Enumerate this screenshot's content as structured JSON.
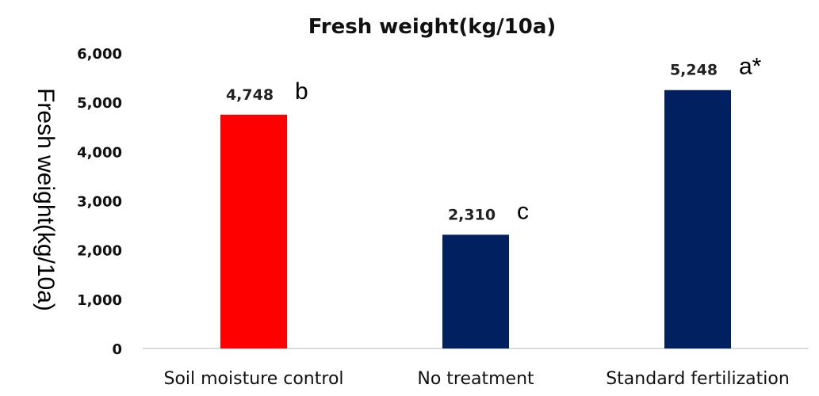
{
  "chart_data": {
    "type": "bar",
    "title": "Fresh weight(kg/10a)",
    "ylabel": "Fresh  weight(kg/10a)",
    "xlabel": "",
    "ylim": [
      0,
      6000
    ],
    "yticks": [
      0,
      1000,
      2000,
      3000,
      4000,
      5000,
      6000
    ],
    "ytick_labels": [
      "0",
      "1,000",
      "2,000",
      "3,000",
      "4,000",
      "5,000",
      "6,000"
    ],
    "grid": false,
    "legend": "none",
    "categories": [
      "Soil moisture control",
      "No treatment",
      "Standard fertilization"
    ],
    "values": [
      4748,
      2310,
      5248
    ],
    "value_labels": [
      "4,748",
      "2,310",
      "5,248"
    ],
    "significance": [
      "b",
      "c",
      "a*"
    ],
    "colors": [
      "#ff0000",
      "#002060",
      "#002060"
    ]
  }
}
